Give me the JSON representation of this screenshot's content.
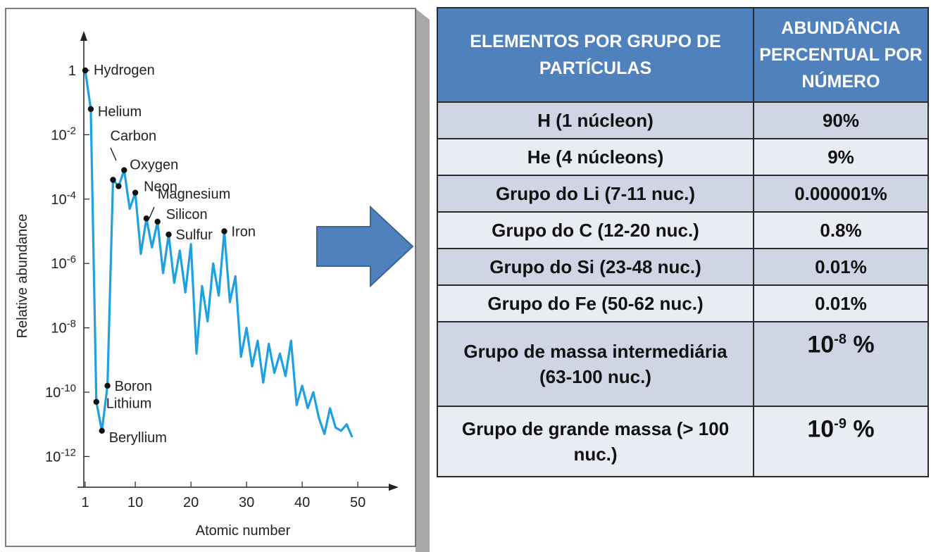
{
  "chart_data": {
    "type": "line",
    "xlabel": "Atomic number",
    "ylabel": "Relative abundance",
    "x_ticks": [
      "1",
      "10",
      "20",
      "30",
      "40",
      "50"
    ],
    "y_ticks": [
      "1",
      "10-2",
      "10-4",
      "10-6",
      "10-8",
      "10-10",
      "10-12"
    ],
    "y_scale": "log",
    "xlim": [
      1,
      50
    ],
    "ylim_log10": [
      -12,
      1.2
    ],
    "line_color": "#1fa0e0",
    "series": [
      {
        "x": [
          1,
          2,
          3,
          4,
          5,
          6,
          7,
          8,
          9,
          10,
          11,
          12,
          13,
          14,
          15,
          16,
          17,
          18,
          19,
          20,
          21,
          22,
          23,
          24,
          25,
          26,
          27,
          28,
          29,
          30,
          31,
          32,
          33,
          34,
          35,
          36,
          37,
          38,
          39,
          40,
          41,
          42,
          43,
          44,
          45,
          46,
          47,
          48,
          49
        ],
        "log10_values": [
          0,
          -1.2,
          -10.3,
          -11.2,
          -9.8,
          -3.4,
          -3.6,
          -3.1,
          -4.3,
          -3.8,
          -5.7,
          -4.6,
          -5.5,
          -4.7,
          -6.3,
          -5.1,
          -6.6,
          -5.6,
          -6.9,
          -5.4,
          -8.8,
          -6.7,
          -7.8,
          -6.0,
          -7.0,
          -5.0,
          -7.2,
          -6.4,
          -8.9,
          -8.0,
          -9.2,
          -8.4,
          -9.7,
          -8.5,
          -9.4,
          -8.8,
          -9.5,
          -8.4,
          -10.4,
          -9.8,
          -10.5,
          -10.0,
          -10.8,
          -11.3,
          -10.5,
          -11.1,
          -11.2,
          -11.0,
          -11.4
        ]
      }
    ],
    "labeled_points": [
      {
        "label": "Hydrogen",
        "x": 1,
        "log10": 0
      },
      {
        "label": "Helium",
        "x": 2,
        "log10": -1.2
      },
      {
        "label": "Carbon",
        "x": 6,
        "log10": -3.4
      },
      {
        "label": "Oxygen",
        "x": 8,
        "log10": -3.1
      },
      {
        "label": "Neon",
        "x": 10,
        "log10": -3.8
      },
      {
        "label": "Magnesium",
        "x": 12,
        "log10": -4.6
      },
      {
        "label": "Silicon",
        "x": 14,
        "log10": -4.7
      },
      {
        "label": "Sulfur",
        "x": 16,
        "log10": -5.1
      },
      {
        "label": "Iron",
        "x": 26,
        "log10": -5.0
      },
      {
        "label": "Boron",
        "x": 5,
        "log10": -9.8
      },
      {
        "label": "Lithium",
        "x": 3,
        "log10": -10.3
      },
      {
        "label": "Beryllium",
        "x": 4,
        "log10": -11.2
      }
    ],
    "extra_points": [
      {
        "x": 7,
        "log10": -3.6
      }
    ]
  },
  "table": {
    "headers": [
      "ELEMENTOS POR GRUPO DE PARTÍCULAS",
      "ABUNDÂNCIA PERCENTUAL POR NÚMERO"
    ],
    "rows": [
      {
        "group": "H (1 núcleon)",
        "value": "90%"
      },
      {
        "group": "He (4 núcleons)",
        "value": "9%"
      },
      {
        "group": "Grupo do Li (7-11 nuc.)",
        "value": "0.000001%"
      },
      {
        "group": "Grupo do C (12-20 nuc.)",
        "value": "0.8%"
      },
      {
        "group": "Grupo do Si (23-48 nuc.)",
        "value": "0.01%"
      },
      {
        "group": "Grupo do Fe (50-62 nuc.)",
        "value": "0.01%"
      },
      {
        "group": "Grupo de massa intermediária (63-100 nuc.)",
        "value_base": "10",
        "value_exp": "-8",
        "value_unit": "%"
      },
      {
        "group": "Grupo de grande massa (> 100 nuc.)",
        "value_base": "10",
        "value_exp": "-9",
        "value_unit": "%"
      }
    ]
  },
  "colors": {
    "header_bg": "#4f81bd",
    "row_dark": "#cfd5e4",
    "row_light": "#e9ecf3",
    "arrow": "#4f81bd"
  }
}
